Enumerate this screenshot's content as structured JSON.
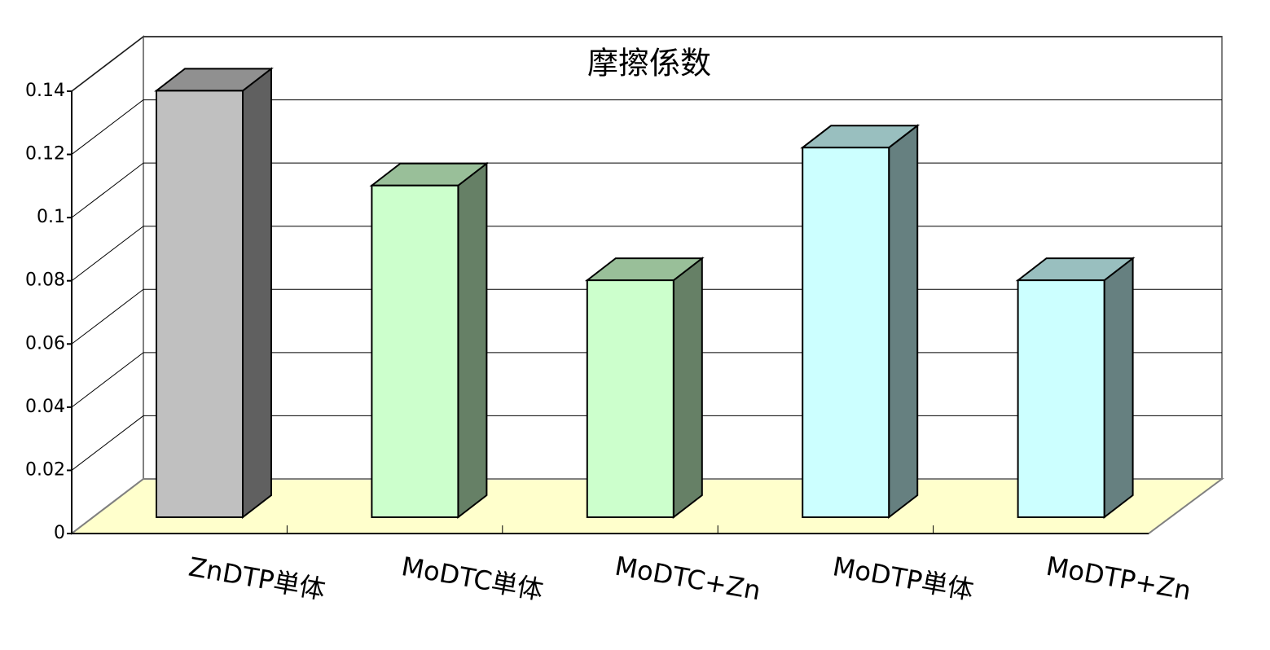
{
  "chart_data": {
    "type": "bar3d",
    "title": "摩擦係数",
    "categories": [
      "ZnDTP単体",
      "MoDTC単体",
      "MoDTC+Zn",
      "MoDTP単体",
      "MoDTP+Zn"
    ],
    "values": [
      0.135,
      0.105,
      0.075,
      0.117,
      0.075
    ],
    "colors": [
      "#c0c0c0",
      "#ccffcc",
      "#ccffcc",
      "#ccffff",
      "#ccffff"
    ],
    "ylim": [
      0,
      0.14
    ],
    "yticks": [
      0,
      0.02,
      0.04,
      0.06,
      0.08,
      0.1,
      0.12,
      0.14
    ],
    "grid": true
  }
}
